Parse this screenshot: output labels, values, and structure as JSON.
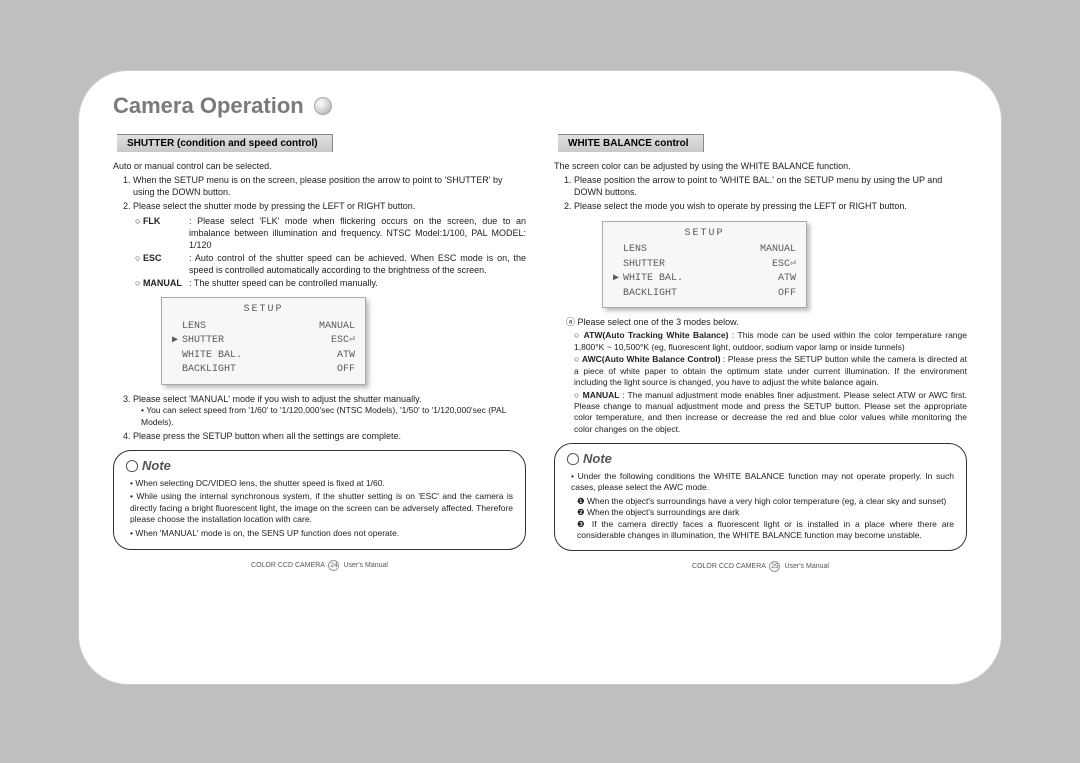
{
  "title": "Camera Operation",
  "left": {
    "section": "SHUTTER (condition and speed control)",
    "intro": "Auto or manual control can be selected.",
    "step1": "When the SETUP menu is on the screen, please position the arrow to point to 'SHUTTER' by using the DOWN button.",
    "step2": "Please select the shutter mode by pressing the LEFT or RIGHT button.",
    "flk_label": "FLK",
    "flk_text": "Please select 'FLK' mode when flickering occurs on the screen, due to an imbalance between illumination and frequency. NTSC Model:1/100, PAL MODEL: 1/120",
    "esc_label": "ESC",
    "esc_text": "Auto control of the shutter speed can be achieved. When ESC mode is on, the speed is controlled automatically according to the brightness of the screen.",
    "manual_label": "MANUAL",
    "manual_text": "The shutter speed can be controlled manually.",
    "step3": "Please select 'MANUAL' mode if you wish to adjust the shutter manually.",
    "step3_sub": "You can select speed from '1/60' to '1/120,000'sec (NTSC Models), '1/50' to '1/120,000'sec (PAL Models).",
    "step4": "Please press the SETUP button when all the settings are complete.",
    "note1": "When selecting DC/VIDEO lens, the shutter speed is fixed at 1/60.",
    "note2": "While using the internal synchronous system, if the shutter setting is on 'ESC' and the camera is directly facing a bright fluorescent light, the image on the screen can be adversely affected. Therefore please choose the installation location with care.",
    "note3": "When 'MANUAL' mode is on, the SENS UP function does not operate.",
    "footer_left": "COLOR CCD CAMERA",
    "footer_page": "24",
    "footer_right": "User's Manual"
  },
  "right": {
    "section": "WHITE BALANCE control",
    "intro": "The screen color can be adjusted by using the WHITE BALANCE function.",
    "step1": "Please position the arrow to point to 'WHITE BAL.' on the SETUP menu by using the UP and DOWN buttons.",
    "step2": "Please select the mode you wish to operate by pressing the LEFT or RIGHT button.",
    "modes_intro": "Please select one of the 3 modes below.",
    "atw_label": "ATW(Auto Tracking White Balance)",
    "atw_text": " : This mode can be used within the color temperature range 1,800°K ~ 10,500°K (eg, fluorescent light, outdoor, sodium vapor lamp or inside tunnels)",
    "awc_label": "AWC(Auto White Balance Control)",
    "awc_text": " : Please press the SETUP button while the camera is directed at a piece of white paper to obtain the optimum state under current illumination. If the environment including the light source is changed, you have to adjust the white balance again.",
    "man_label": "MANUAL",
    "man_text": " : The manual adjustment mode enables finer adjustment. Please select ATW or AWC first. Please change to manual adjustment mode and press the SETUP button. Please set the appropriate color temperature, and then increase or decrease the red and blue color values while monitoring the color changes on the object.",
    "note_intro": "Under the following conditions the WHITE BALANCE function may not operate properly. In such cases, please select the AWC mode.",
    "note_1": "When the object's surroundings have a very high color temperature (eg, a clear sky and sunset)",
    "note_2": "When the object's surroundings are dark",
    "note_3": "If the camera directly faces a fluorescent light or is installed in a place where there are considerable changes in illumination, the WHITE BALANCE function may become unstable.",
    "footer_left": "COLOR CCD CAMERA",
    "footer_page": "25",
    "footer_right": "User's Manual"
  },
  "setup1": {
    "title": "SETUP",
    "rows": [
      {
        "arrow": " ",
        "left": "LENS",
        "right": "MANUAL"
      },
      {
        "arrow": "▶",
        "left": "SHUTTER",
        "right": "ESC⏎"
      },
      {
        "arrow": " ",
        "left": "WHITE BAL.",
        "right": "ATW"
      },
      {
        "arrow": " ",
        "left": "BACKLIGHT",
        "right": "OFF"
      }
    ]
  },
  "setup2": {
    "title": "SETUP",
    "rows": [
      {
        "arrow": " ",
        "left": "LENS",
        "right": "MANUAL"
      },
      {
        "arrow": " ",
        "left": "SHUTTER",
        "right": "ESC⏎"
      },
      {
        "arrow": "▶",
        "left": "WHITE BAL.",
        "right": "ATW"
      },
      {
        "arrow": " ",
        "left": "BACKLIGHT",
        "right": "OFF"
      }
    ]
  },
  "note_label": "Note",
  "colors": {
    "background": "#bfbfbf",
    "page_bg": "#ffffff",
    "title_color": "#7a7a7a",
    "section_bg": "#d0d0d0",
    "setup_bg": "#f7f7f7",
    "setup_text": "#5a5a5a"
  }
}
